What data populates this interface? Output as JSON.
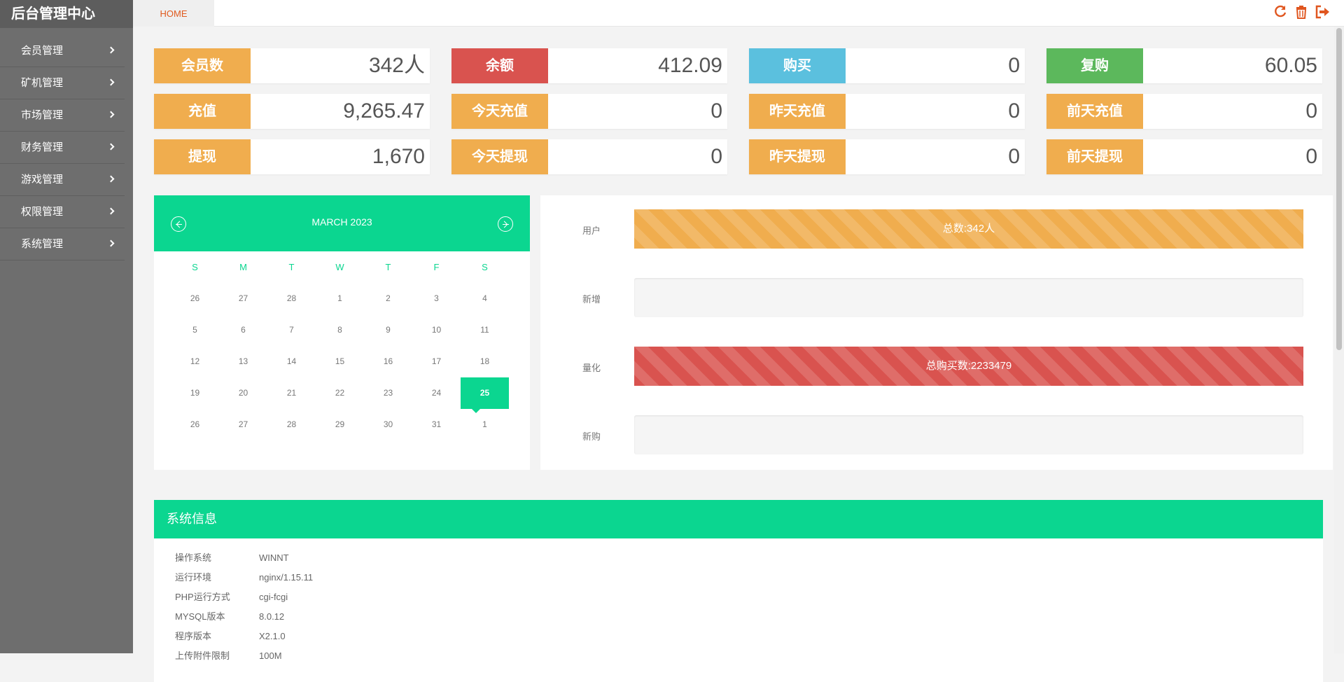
{
  "app": {
    "title": "后台管理中心"
  },
  "sidebar": {
    "items": [
      {
        "label": "会员管理"
      },
      {
        "label": "矿机管理"
      },
      {
        "label": "市场管理"
      },
      {
        "label": "财务管理"
      },
      {
        "label": "游戏管理"
      },
      {
        "label": "权限管理"
      },
      {
        "label": "系统管理"
      }
    ]
  },
  "topbar": {
    "tab_home": "HOME",
    "icons": [
      "refresh-icon",
      "trash-icon",
      "logout-icon"
    ],
    "accent": "#e0561f"
  },
  "stats": [
    {
      "label": "会员数",
      "value": "342人",
      "color": "#f0ad4e"
    },
    {
      "label": "余额",
      "value": "412.09",
      "color": "#d9534f"
    },
    {
      "label": "购买",
      "value": "0",
      "color": "#5bc0de"
    },
    {
      "label": "复购",
      "value": "60.05",
      "color": "#5cb85c"
    },
    {
      "label": "充值",
      "value": "9,265.47",
      "color": "#f0ad4e"
    },
    {
      "label": "今天充值",
      "value": "0",
      "color": "#f0ad4e"
    },
    {
      "label": "昨天充值",
      "value": "0",
      "color": "#f0ad4e"
    },
    {
      "label": "前天充值",
      "value": "0",
      "color": "#f0ad4e"
    },
    {
      "label": "提现",
      "value": "1,670",
      "color": "#f0ad4e"
    },
    {
      "label": "今天提现",
      "value": "0",
      "color": "#f0ad4e"
    },
    {
      "label": "昨天提现",
      "value": "0",
      "color": "#f0ad4e"
    },
    {
      "label": "前天提现",
      "value": "0",
      "color": "#f0ad4e"
    }
  ],
  "calendar": {
    "month": "MARCH 2023",
    "weekdays": [
      "S",
      "M",
      "T",
      "W",
      "T",
      "F",
      "S"
    ],
    "weeks": [
      [
        "26",
        "27",
        "28",
        "1",
        "2",
        "3",
        "4"
      ],
      [
        "5",
        "6",
        "7",
        "8",
        "9",
        "10",
        "11"
      ],
      [
        "12",
        "13",
        "14",
        "15",
        "16",
        "17",
        "18"
      ],
      [
        "19",
        "20",
        "21",
        "22",
        "23",
        "24",
        "25"
      ],
      [
        "26",
        "27",
        "28",
        "29",
        "30",
        "31",
        "1"
      ]
    ],
    "selected": "25",
    "accent": "#0bd690"
  },
  "progress": [
    {
      "label": "用户",
      "text": "总数:342人",
      "fill_fraction": 1.0,
      "color": "orange"
    },
    {
      "label": "新增",
      "text": "",
      "fill_fraction": 0,
      "color": ""
    },
    {
      "label": "量化",
      "text": "总购买数:2233479",
      "fill_fraction": 1.0,
      "color": "red"
    },
    {
      "label": "新购",
      "text": "",
      "fill_fraction": 0,
      "color": ""
    }
  ],
  "sysinfo": {
    "title": "系统信息",
    "rows": [
      {
        "key": "操作系统",
        "value": "WINNT"
      },
      {
        "key": "运行环境",
        "value": "nginx/1.15.11"
      },
      {
        "key": "PHP运行方式",
        "value": "cgi-fcgi"
      },
      {
        "key": "MYSQL版本",
        "value": "8.0.12"
      },
      {
        "key": "程序版本",
        "value": "X2.1.0"
      },
      {
        "key": "上传附件限制",
        "value": "100M"
      }
    ]
  }
}
